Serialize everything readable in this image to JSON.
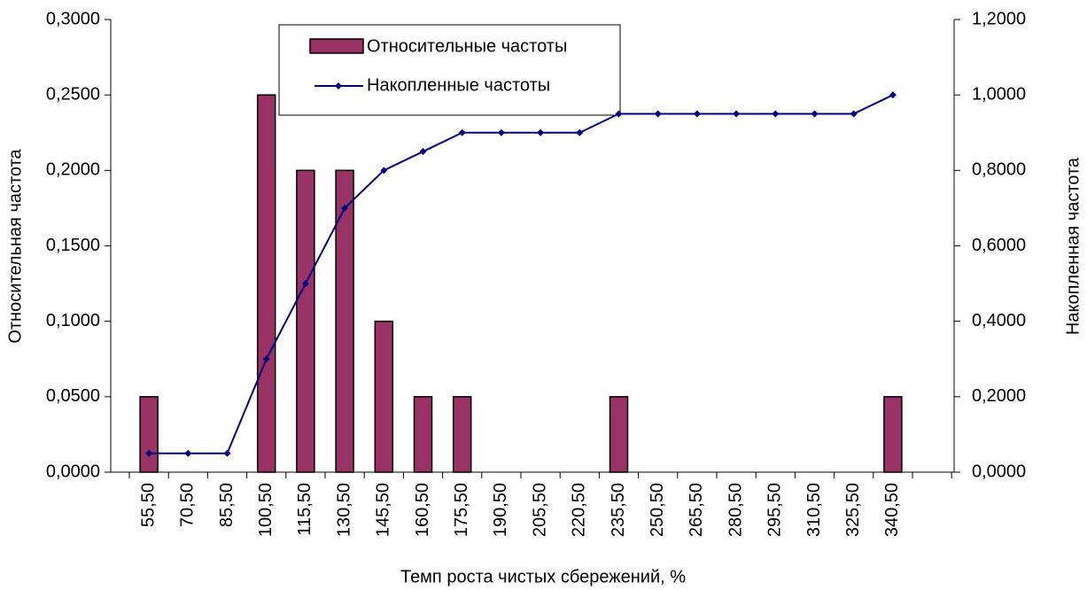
{
  "chart_data": {
    "type": "bar-line",
    "x_label": "Темп роста чистых сбережений, %",
    "y_label": "Относительная частота",
    "y2_label": "Накопленная частота",
    "categories": [
      "55,50",
      "70,50",
      "85,50",
      "100,50",
      "115,50",
      "130,50",
      "145,50",
      "160,50",
      "175,50",
      "190,50",
      "205,50",
      "220,50",
      "235,50",
      "250,50",
      "265,50",
      "280,50",
      "295,50",
      "310,50",
      "325,50",
      "340,50",
      null
    ],
    "series": [
      {
        "name": "Относительные частоты",
        "type": "bar",
        "color": "#993366",
        "values": [
          0.05,
          0,
          0,
          0.25,
          0.2,
          0.2,
          0.1,
          0.05,
          0.05,
          0,
          0,
          0,
          0.05,
          0,
          0,
          0,
          0,
          0,
          0,
          0.05,
          null
        ]
      },
      {
        "name": "Накопленные частоты",
        "type": "line",
        "color": "#000080",
        "axis": "y2",
        "values": [
          0.05,
          0.05,
          0.05,
          0.3,
          0.5,
          0.7,
          0.8,
          0.85,
          0.9,
          0.9,
          0.9,
          0.9,
          0.95,
          0.95,
          0.95,
          0.95,
          0.95,
          0.95,
          0.95,
          1.0,
          null
        ]
      }
    ],
    "ylim": [
      0,
      0.3
    ],
    "yticks": [
      {
        "value": 0,
        "label": "0,0000"
      },
      {
        "value": 0.05,
        "label": "0,0500"
      },
      {
        "value": 0.1,
        "label": "0,1000"
      },
      {
        "value": 0.15,
        "label": "0,1500"
      },
      {
        "value": 0.2,
        "label": "0,2000"
      },
      {
        "value": 0.25,
        "label": "0,2500"
      },
      {
        "value": 0.3,
        "label": "0,3000"
      }
    ],
    "y2lim": [
      0,
      1.2
    ],
    "y2ticks": [
      {
        "value": 0,
        "label": "0,0000"
      },
      {
        "value": 0.2,
        "label": "0,2000"
      },
      {
        "value": 0.4,
        "label": "0,4000"
      },
      {
        "value": 0.6,
        "label": "0,6000"
      },
      {
        "value": 0.8,
        "label": "0,8000"
      },
      {
        "value": 1.0,
        "label": "1,0000"
      },
      {
        "value": 1.2,
        "label": "1,2000"
      }
    ],
    "legend": "top"
  }
}
